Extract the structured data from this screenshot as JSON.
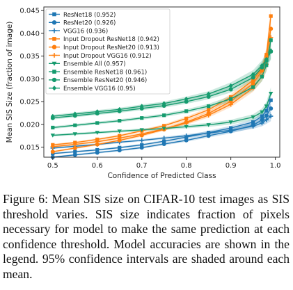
{
  "chart_data": {
    "type": "line",
    "xlabel": "Confidence of Predicted Class",
    "ylabel": "Mean SIS Size (fraction of image)",
    "xlim": [
      0.48,
      1.01
    ],
    "ylim": [
      0.0128,
      0.0458
    ],
    "x_ticks": [
      "0.5",
      "0.6",
      "0.7",
      "0.8",
      "0.9",
      "1.0"
    ],
    "y_ticks": [
      "0.015",
      "0.020",
      "0.025",
      "0.030",
      "0.035",
      "0.040",
      "0.045"
    ],
    "grid": false,
    "legend_position": "top-left",
    "x": [
      0.5,
      0.55,
      0.6,
      0.65,
      0.7,
      0.75,
      0.8,
      0.85,
      0.9,
      0.95,
      0.97,
      0.98,
      0.99
    ],
    "series": [
      {
        "name": "ResNet18 (0.952)",
        "color": "#1f77b4",
        "marker": "square",
        "values": [
          0.0136,
          0.014,
          0.0144,
          0.0149,
          0.0155,
          0.0163,
          0.0172,
          0.0182,
          0.0192,
          0.0205,
          0.0218,
          0.023,
          0.0253
        ]
      },
      {
        "name": "ResNet20 (0.926)",
        "color": "#1f77b4",
        "marker": "circle",
        "values": [
          0.0128,
          0.0133,
          0.0138,
          0.0143,
          0.0149,
          0.0157,
          0.0165,
          0.0175,
          0.0185,
          0.0198,
          0.021,
          0.0219,
          0.0235
        ]
      },
      {
        "name": "VGG16 (0.936)",
        "color": "#1f77b4",
        "marker": "plus",
        "values": [
          0.0148,
          0.0152,
          0.0156,
          0.0161,
          0.0165,
          0.017,
          0.0175,
          0.0181,
          0.0187,
          0.0196,
          0.0203,
          0.021,
          0.0218
        ]
      },
      {
        "name": "Input Dropout ResNet18 (0.942)",
        "color": "#ff7f0e",
        "marker": "square",
        "values": [
          0.0155,
          0.016,
          0.0167,
          0.0175,
          0.0186,
          0.0197,
          0.0213,
          0.0232,
          0.026,
          0.0297,
          0.0323,
          0.0353,
          0.0438
        ]
      },
      {
        "name": "Input Dropout ResNet20 (0.913)",
        "color": "#ff7f0e",
        "marker": "circle",
        "values": [
          0.014,
          0.0148,
          0.0156,
          0.0165,
          0.0176,
          0.0189,
          0.0205,
          0.0224,
          0.0251,
          0.029,
          0.0318,
          0.035,
          0.041
        ]
      },
      {
        "name": "Input Dropout VGG16 (0.912)",
        "color": "#ff7f0e",
        "marker": "plus",
        "values": [
          0.0151,
          0.0156,
          0.0162,
          0.017,
          0.0179,
          0.019,
          0.0203,
          0.022,
          0.0244,
          0.028,
          0.0306,
          0.0332,
          0.0391
        ]
      },
      {
        "name": "Ensemble All (0.957)",
        "color": "#159b6e",
        "marker": "triangle-down",
        "values": [
          0.0176,
          0.0179,
          0.0182,
          0.0185,
          0.0188,
          0.0191,
          0.0195,
          0.0199,
          0.0205,
          0.0216,
          0.0227,
          0.024,
          0.0268
        ]
      },
      {
        "name": "Ensemble ResNet18 (0.961)",
        "color": "#159b6e",
        "marker": "square",
        "values": [
          0.0193,
          0.0198,
          0.0203,
          0.0208,
          0.0214,
          0.022,
          0.0229,
          0.024,
          0.0256,
          0.0282,
          0.0305,
          0.033,
          0.0385
        ]
      },
      {
        "name": "Ensemble ResNet20 (0.946)",
        "color": "#159b6e",
        "marker": "circle",
        "values": [
          0.0214,
          0.0219,
          0.0224,
          0.0229,
          0.0235,
          0.0241,
          0.025,
          0.0261,
          0.0277,
          0.0303,
          0.0325,
          0.034,
          0.036
        ]
      },
      {
        "name": "Ensemble VGG16 (0.95)",
        "color": "#159b6e",
        "marker": "diamond",
        "values": [
          0.0218,
          0.0223,
          0.0228,
          0.0233,
          0.024,
          0.0246,
          0.0256,
          0.0267,
          0.0285,
          0.031,
          0.0329,
          0.0343,
          0.0362
        ]
      }
    ]
  },
  "caption": "Figure 6: Mean SIS size on CIFAR-10 test images as SIS threshold varies. SIS size indicates fraction of pixels necessary for model to make the same prediction at each confidence threshold. Model accuracies are shown in the legend. 95% confidence intervals are shaded around each mean."
}
